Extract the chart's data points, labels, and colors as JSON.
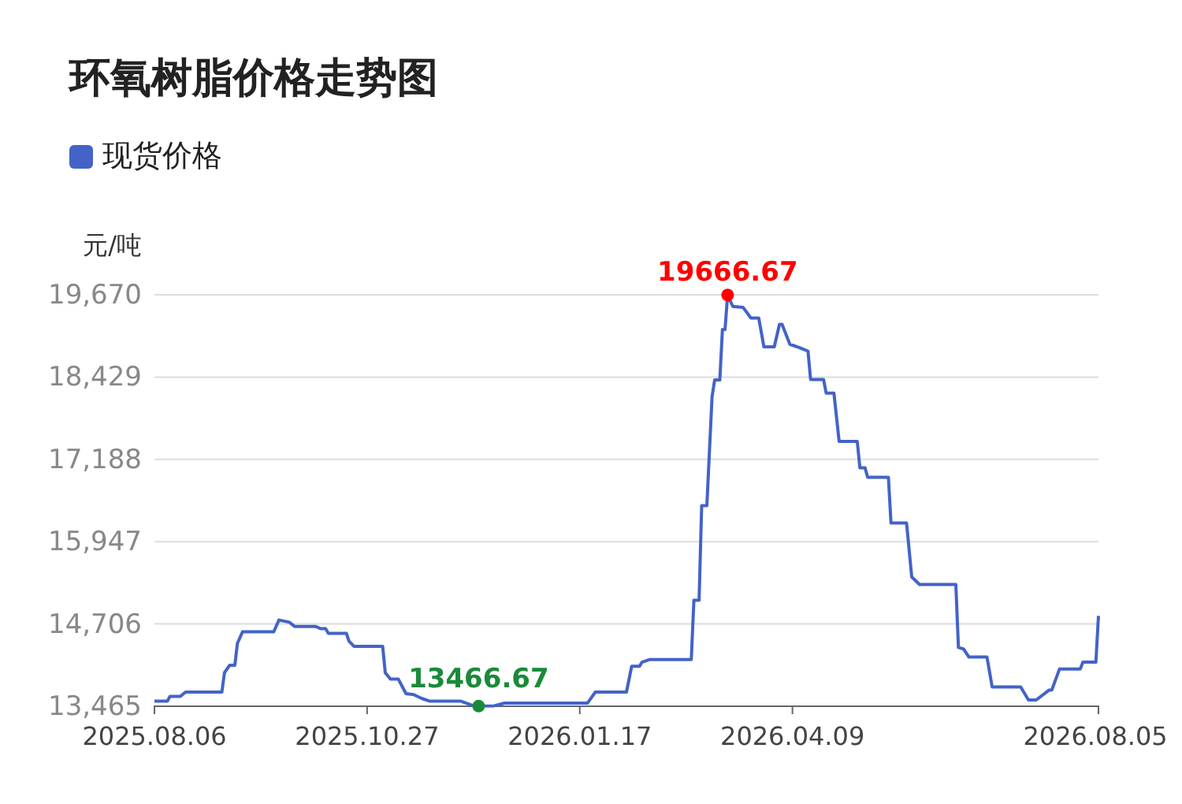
{
  "chart_data": {
    "type": "line",
    "title": "环氧树脂价格走势图",
    "ylabel": "元/吨",
    "legend": "top left",
    "grid": "y",
    "marker": "none",
    "line_style": "solid",
    "xlim": [
      "2025-08-06",
      "2026-08-05"
    ],
    "xticks": [
      {
        "value": "2025-08-06",
        "label": "2025.08.06"
      },
      {
        "value": "2025-10-27",
        "label": "2025.10.27"
      },
      {
        "value": "2026-01-17",
        "label": "2026.01.17"
      },
      {
        "value": "2026-04-09",
        "label": "2026.04.09"
      },
      {
        "value": "2026-08-05",
        "label": "2026.08.05"
      }
    ],
    "ylim": [
      13465,
      19670
    ],
    "yticks": [
      {
        "value": 13465,
        "label": "13,465"
      },
      {
        "value": 14706,
        "label": "14,706"
      },
      {
        "value": 15947,
        "label": "15,947"
      },
      {
        "value": 17188,
        "label": "17,188"
      },
      {
        "value": 18429,
        "label": "18,429"
      },
      {
        "value": 19670,
        "label": "19,670"
      }
    ],
    "x": [
      "2025-08-06",
      "2025-08-11",
      "2025-08-12",
      "2025-08-16",
      "2025-08-18",
      "2025-09-01",
      "2025-09-02",
      "2025-09-04",
      "2025-09-06",
      "2025-09-07",
      "2025-09-09",
      "2025-09-21",
      "2025-09-23",
      "2025-09-27",
      "2025-09-29",
      "2025-10-07",
      "2025-10-09",
      "2025-10-11",
      "2025-10-12",
      "2025-10-19",
      "2025-10-20",
      "2025-10-22",
      "2025-11-02",
      "2025-11-03",
      "2025-11-05",
      "2025-11-08",
      "2025-11-11",
      "2025-11-14",
      "2025-11-17",
      "2025-11-20",
      "2025-12-02",
      "2025-12-07",
      "2025-12-09",
      "2025-12-15",
      "2025-12-19",
      "2026-01-20",
      "2026-01-23",
      "2026-02-04",
      "2026-02-06",
      "2026-02-09",
      "2026-02-10",
      "2026-02-13",
      "2026-03-01",
      "2026-03-02",
      "2026-03-04",
      "2026-03-05",
      "2026-03-07",
      "2026-03-09",
      "2026-03-10",
      "2026-03-12",
      "2026-03-13",
      "2026-03-14",
      "2026-03-15",
      "2026-03-17",
      "2026-03-21",
      "2026-03-24",
      "2026-03-27",
      "2026-03-29",
      "2026-04-02",
      "2026-04-04",
      "2026-04-05",
      "2026-04-08",
      "2026-04-12",
      "2026-04-15",
      "2026-04-16",
      "2026-04-21",
      "2026-04-22",
      "2026-04-25",
      "2026-04-27",
      "2026-05-04",
      "2026-05-05",
      "2026-05-07",
      "2026-05-08",
      "2026-05-16",
      "2026-05-17",
      "2026-05-23",
      "2026-05-25",
      "2026-05-28",
      "2026-06-11",
      "2026-06-12",
      "2026-06-14",
      "2026-06-16",
      "2026-06-23",
      "2026-06-25",
      "2026-07-06",
      "2026-07-09",
      "2026-07-12",
      "2026-07-17",
      "2026-07-18",
      "2026-07-21",
      "2026-07-29",
      "2026-07-30",
      "2026-08-04",
      "2026-08-05"
    ],
    "series": [
      {
        "name": "现货价格",
        "color": "#4363c8",
        "values": [
          13543,
          13543,
          13615,
          13615,
          13679,
          13679,
          13971,
          14083,
          14083,
          14416,
          14589,
          14589,
          14765,
          14732,
          14670,
          14670,
          14637,
          14637,
          14566,
          14566,
          14447,
          14368,
          14368,
          13971,
          13876,
          13876,
          13655,
          13640,
          13584,
          13543,
          13543,
          13472,
          13466.67,
          13472,
          13513,
          13513,
          13679,
          13679,
          14067,
          14067,
          14130,
          14170,
          14170,
          15065,
          15065,
          16491,
          16491,
          18131,
          18385,
          18385,
          19146,
          19146,
          19666.67,
          19495,
          19479,
          19320,
          19320,
          18885,
          18885,
          19225,
          19225,
          18924,
          18868,
          18820,
          18393,
          18393,
          18188,
          18188,
          17458,
          17458,
          17061,
          17061,
          16919,
          16919,
          16229,
          16229,
          15414,
          15302,
          15302,
          14352,
          14328,
          14209,
          14209,
          13757,
          13757,
          13560,
          13560,
          13710,
          13710,
          14028,
          14028,
          14130,
          14130,
          14827
        ]
      }
    ],
    "annotations": [
      {
        "text": "19666.67",
        "x": "2026-03-15",
        "y": 19666.67
      },
      {
        "text": "13466.67",
        "x": "2025-12-09",
        "y": 13466.67
      }
    ]
  }
}
